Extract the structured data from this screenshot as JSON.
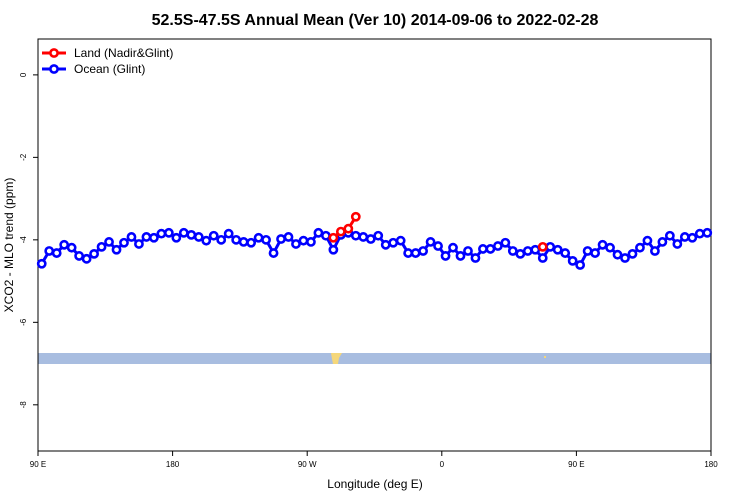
{
  "chart_data": {
    "type": "line",
    "title": "52.5S-47.5S Annual Mean (Ver 10)   2014-09-06 to 2022-02-28",
    "xlabel": "Longitude (deg E)",
    "ylabel": "XCO2 - MLO trend (ppm)",
    "xlim": [
      90,
      540
    ],
    "ylim": [
      -9.12,
      0.87
    ],
    "xticks": [
      {
        "value": 90,
        "label": "90 E"
      },
      180,
      {
        "value": 270,
        "label": "90 W"
      },
      {
        "value": 360,
        "label": "0"
      },
      {
        "value": 450,
        "label": "90 E"
      },
      {
        "value": 540,
        "label": "180"
      }
    ],
    "yticks": [
      0,
      -2,
      -4,
      -6,
      -8
    ],
    "legend": "top-left",
    "series": [
      {
        "name": "Land (Nadir&Glint)",
        "color": "#ff0000",
        "x": [
          287.5,
          292.5,
          297.5,
          302.5,
          307.5,
          427.5
        ],
        "values": [
          -3.95,
          -3.8,
          -3.73,
          -3.44,
          null,
          -4.17
        ]
      },
      {
        "name": "Ocean (Glint)",
        "color": "#0000ff",
        "x": [
          92.5,
          97.5,
          102.5,
          107.5,
          112.5,
          117.5,
          122.5,
          127.5,
          132.5,
          137.5,
          142.5,
          147.5,
          152.5,
          157.5,
          162.5,
          167.5,
          172.5,
          177.5,
          182.5,
          187.5,
          192.5,
          197.5,
          202.5,
          207.5,
          212.5,
          217.5,
          222.5,
          227.5,
          232.5,
          237.5,
          242.5,
          247.5,
          252.5,
          257.5,
          262.5,
          267.5,
          272.5,
          277.5,
          282.5,
          287.5,
          292.5,
          297.5,
          302.5,
          307.5,
          312.5,
          317.5,
          322.5,
          327.5,
          332.5,
          337.5,
          342.5,
          347.5,
          352.5,
          357.5,
          362.5,
          367.5,
          372.5,
          377.5,
          382.5,
          387.5,
          392.5,
          397.5,
          402.5,
          407.5,
          412.5,
          417.5,
          422.5,
          427.5,
          432.5,
          437.5,
          442.5,
          447.5,
          452.5,
          457.5,
          462.5,
          467.5,
          472.5,
          477.5,
          482.5,
          487.5,
          492.5,
          497.5,
          502.5,
          507.5,
          512.5,
          517.5,
          522.5,
          527.5,
          532.5,
          537.5
        ],
        "values": [
          -4.58,
          -4.27,
          -4.32,
          -4.12,
          -4.19,
          -4.39,
          -4.46,
          -4.34,
          -4.17,
          -4.05,
          -4.24,
          -4.07,
          -3.93,
          -4.1,
          -3.93,
          -3.95,
          -3.85,
          -3.83,
          -3.95,
          -3.83,
          -3.88,
          -3.93,
          -4.02,
          -3.9,
          -4.0,
          -3.85,
          -4.0,
          -4.05,
          -4.07,
          -3.95,
          -4.0,
          -4.32,
          -3.98,
          -3.93,
          -4.1,
          -4.02,
          -4.05,
          -3.83,
          -3.9,
          -4.24,
          -3.88,
          -3.83,
          -3.9,
          -3.93,
          -3.98,
          -3.9,
          -4.12,
          -4.07,
          -4.02,
          -4.32,
          -4.32,
          -4.27,
          -4.05,
          -4.15,
          -4.39,
          -4.19,
          -4.39,
          -4.27,
          -4.44,
          -4.22,
          -4.22,
          -4.15,
          -4.07,
          -4.27,
          -4.34,
          -4.27,
          -4.24,
          -4.44,
          -4.17,
          -4.24,
          -4.32,
          -4.51,
          -4.61,
          -4.27,
          -4.32,
          -4.12,
          -4.19,
          -4.36,
          -4.44,
          -4.34,
          -4.19,
          -4.02,
          -4.27,
          -4.05,
          -3.9,
          -4.1,
          -3.93,
          -3.95,
          -3.85,
          -3.83
        ]
      }
    ]
  }
}
